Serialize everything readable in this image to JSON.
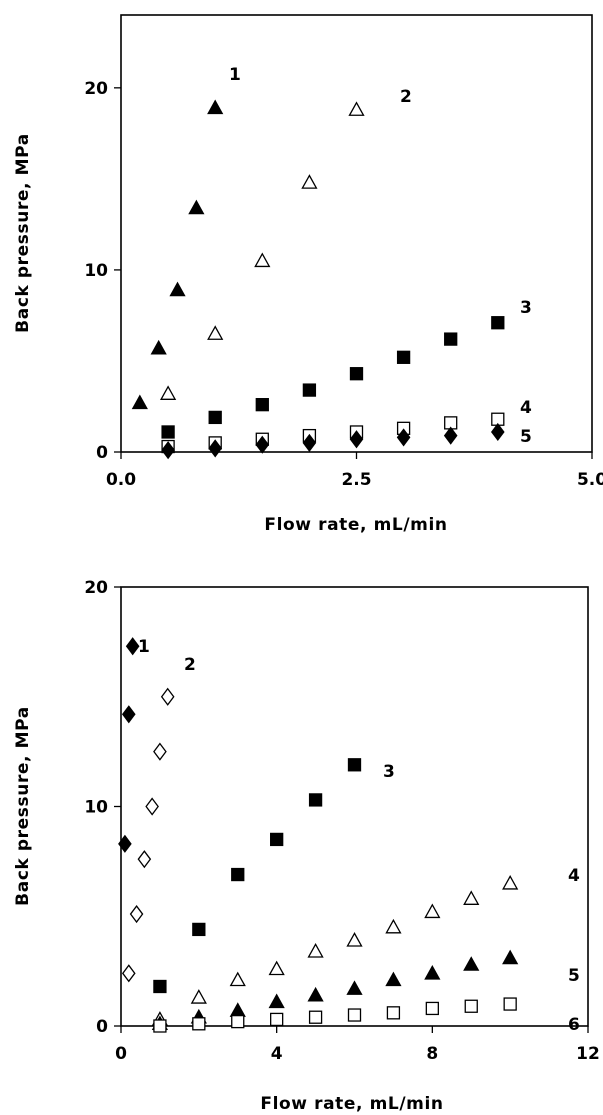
{
  "chart_data": [
    {
      "type": "scatter",
      "title": "",
      "xlabel": "Flow rate, mL/min",
      "ylabel": "Back pressure, MPa",
      "xlim": [
        0,
        5
      ],
      "ylim": [
        0,
        24
      ],
      "xticks": [
        "0.0",
        "2.5",
        "5.0"
      ],
      "yticks": [
        "0",
        "10",
        "20"
      ],
      "grid": false,
      "series": [
        {
          "name": "1",
          "marker": "filled-triangle",
          "x": [
            0.2,
            0.4,
            0.6,
            0.8,
            1.0
          ],
          "y": [
            2.7,
            5.7,
            8.9,
            13.4,
            18.9
          ]
        },
        {
          "name": "2",
          "marker": "open-triangle",
          "x": [
            0.5,
            1.0,
            1.5,
            2.0,
            2.5
          ],
          "y": [
            3.2,
            6.5,
            10.5,
            14.8,
            18.8
          ]
        },
        {
          "name": "3",
          "marker": "filled-square",
          "x": [
            0.5,
            1.0,
            1.5,
            2.0,
            2.5,
            3.0,
            3.5,
            4.0
          ],
          "y": [
            1.1,
            1.9,
            2.6,
            3.4,
            4.3,
            5.2,
            6.2,
            7.1
          ]
        },
        {
          "name": "4",
          "marker": "open-square",
          "x": [
            0.5,
            1.0,
            1.5,
            2.0,
            2.5,
            3.0,
            3.5,
            4.0
          ],
          "y": [
            0.3,
            0.5,
            0.7,
            0.9,
            1.1,
            1.3,
            1.6,
            1.8
          ]
        },
        {
          "name": "5",
          "marker": "filled-diamond",
          "x": [
            0.5,
            1.0,
            1.5,
            2.0,
            2.5,
            3.0,
            3.5,
            4.0
          ],
          "y": [
            0.1,
            0.2,
            0.4,
            0.5,
            0.7,
            0.8,
            0.9,
            1.1
          ]
        }
      ]
    },
    {
      "type": "scatter",
      "title": "",
      "xlabel": "Flow rate, mL/min",
      "ylabel": "Back pressure, MPa",
      "xlim": [
        0,
        12
      ],
      "ylim": [
        0,
        20
      ],
      "xticks": [
        "0",
        "4",
        "8",
        "12"
      ],
      "yticks": [
        "0",
        "10",
        "20"
      ],
      "grid": false,
      "series": [
        {
          "name": "1",
          "marker": "filled-diamond",
          "x": [
            0.1,
            0.2,
            0.3
          ],
          "y": [
            8.3,
            14.2,
            17.3
          ]
        },
        {
          "name": "2",
          "marker": "open-diamond",
          "x": [
            0.2,
            0.4,
            0.6,
            0.8,
            1.0,
            1.2
          ],
          "y": [
            2.4,
            5.1,
            7.6,
            10.0,
            12.5,
            15.0
          ]
        },
        {
          "name": "3",
          "marker": "filled-square",
          "x": [
            1,
            2,
            3,
            4,
            5,
            6
          ],
          "y": [
            1.8,
            4.4,
            6.9,
            8.5,
            10.3,
            11.9
          ]
        },
        {
          "name": "4",
          "marker": "open-triangle",
          "x": [
            1,
            2,
            3,
            4,
            5,
            6,
            7,
            8,
            9,
            10
          ],
          "y": [
            0.3,
            1.3,
            2.1,
            2.6,
            3.4,
            3.9,
            4.5,
            5.2,
            5.8,
            6.5
          ]
        },
        {
          "name": "5",
          "marker": "filled-triangle",
          "x": [
            1,
            2,
            3,
            4,
            5,
            6,
            7,
            8,
            9,
            10
          ],
          "y": [
            0.1,
            0.4,
            0.7,
            1.1,
            1.4,
            1.7,
            2.1,
            2.4,
            2.8,
            3.1
          ]
        },
        {
          "name": "6",
          "marker": "open-square",
          "x": [
            1,
            2,
            3,
            4,
            5,
            6,
            7,
            8,
            9,
            10
          ],
          "y": [
            0.0,
            0.1,
            0.2,
            0.3,
            0.4,
            0.5,
            0.6,
            0.8,
            0.9,
            1.0
          ]
        }
      ]
    }
  ]
}
